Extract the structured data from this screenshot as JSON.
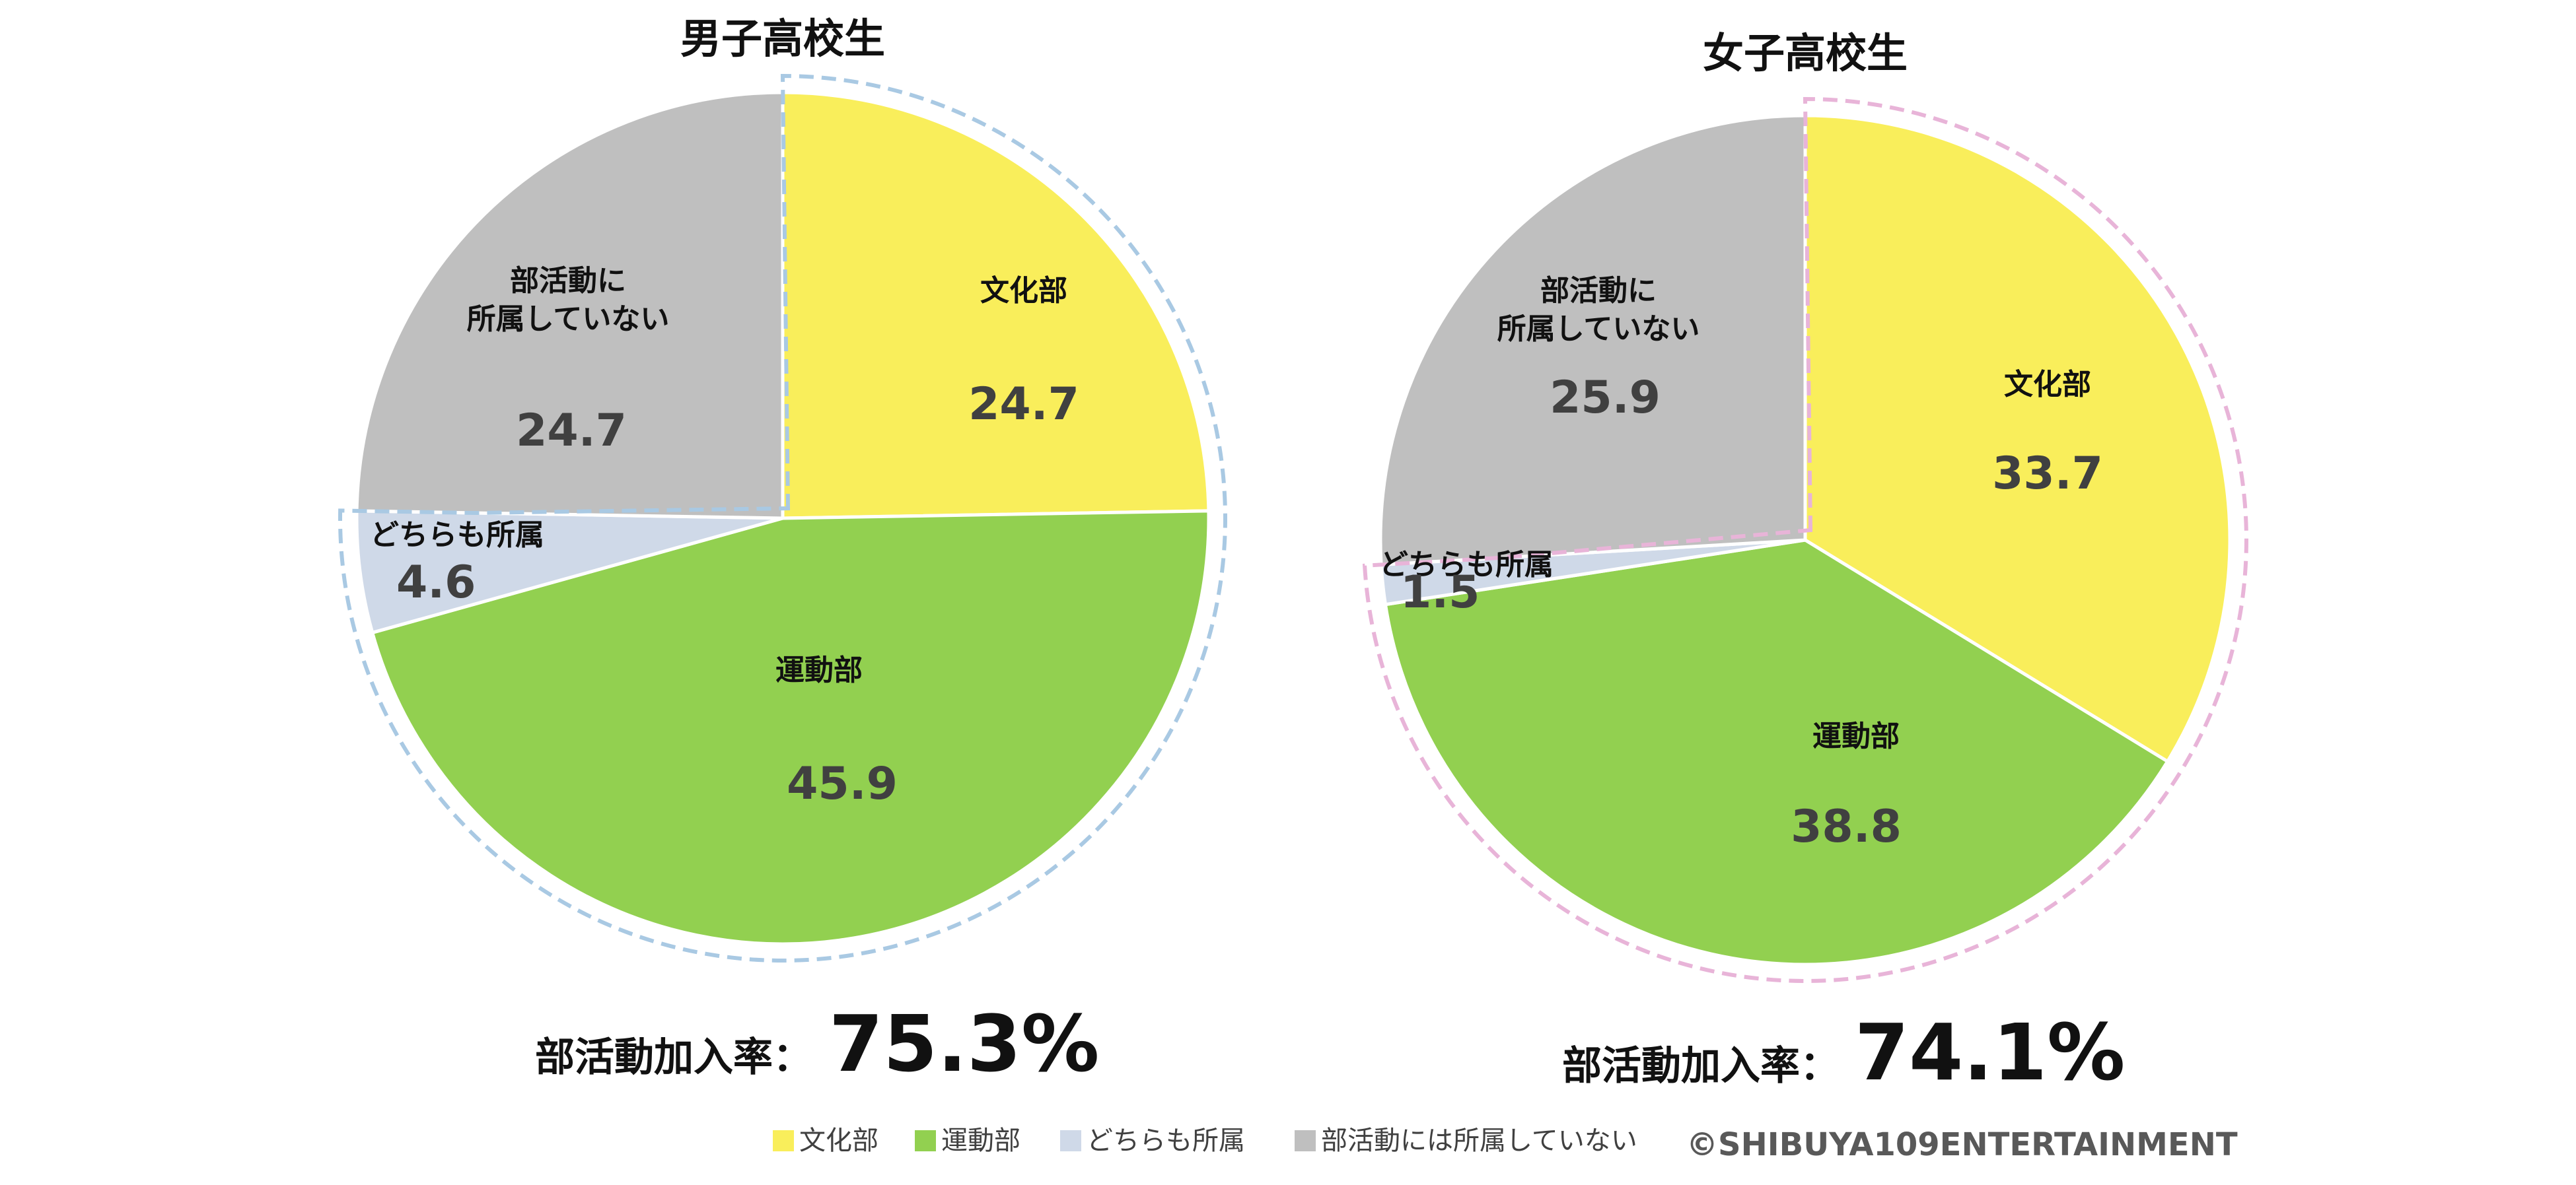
{
  "chart_data": [
    {
      "type": "pie",
      "title": "男子高校生",
      "slices": [
        {
          "label": "文化部",
          "label_lines": [
            "文化部"
          ],
          "value": 24.7,
          "value_text": "24.7",
          "color": "#F9EE5B"
        },
        {
          "label": "運動部",
          "label_lines": [
            "運動部"
          ],
          "value": 45.9,
          "value_text": "45.9",
          "color": "#92D050"
        },
        {
          "label": "どちらも所属",
          "label_lines": [
            "どちらも所属"
          ],
          "value": 4.6,
          "value_text": "4.6",
          "color": "#CFD9E8"
        },
        {
          "label": "部活動に所属していない",
          "label_lines": [
            "部活動に",
            "所属していない"
          ],
          "value": 24.7,
          "value_text": "24.7",
          "color": "#BFBFBF"
        }
      ],
      "rate_label": "部活動加入率：",
      "rate_value": "75.3%",
      "highlight_color": "#A9C9E3"
    },
    {
      "type": "pie",
      "title": "女子高校生",
      "slices": [
        {
          "label": "文化部",
          "label_lines": [
            "文化部"
          ],
          "value": 33.7,
          "value_text": "33.7",
          "color": "#F9EE5B"
        },
        {
          "label": "運動部",
          "label_lines": [
            "運動部"
          ],
          "value": 38.8,
          "value_text": "38.8",
          "color": "#92D050"
        },
        {
          "label": "どちらも所属",
          "label_lines": [
            "どちらも所属"
          ],
          "value": 1.5,
          "value_text": "1.5",
          "color": "#CFD9E8"
        },
        {
          "label": "部活動に所属していない",
          "label_lines": [
            "部活動に",
            "所属していない"
          ],
          "value": 25.9,
          "value_text": "25.9",
          "color": "#BFBFBF"
        }
      ],
      "rate_label": "部活動加入率：",
      "rate_value": "74.1%",
      "highlight_color": "#E8B4D8"
    }
  ],
  "legend": [
    {
      "label": "文化部",
      "color": "#F9EE5B"
    },
    {
      "label": "運動部",
      "color": "#92D050"
    },
    {
      "label": "どちらも所属",
      "color": "#CFD9E8"
    },
    {
      "label": "部活動には所属していない",
      "color": "#BFBFBF"
    }
  ],
  "copyright": "©SHIBUYA109ENTERTAINMENT"
}
